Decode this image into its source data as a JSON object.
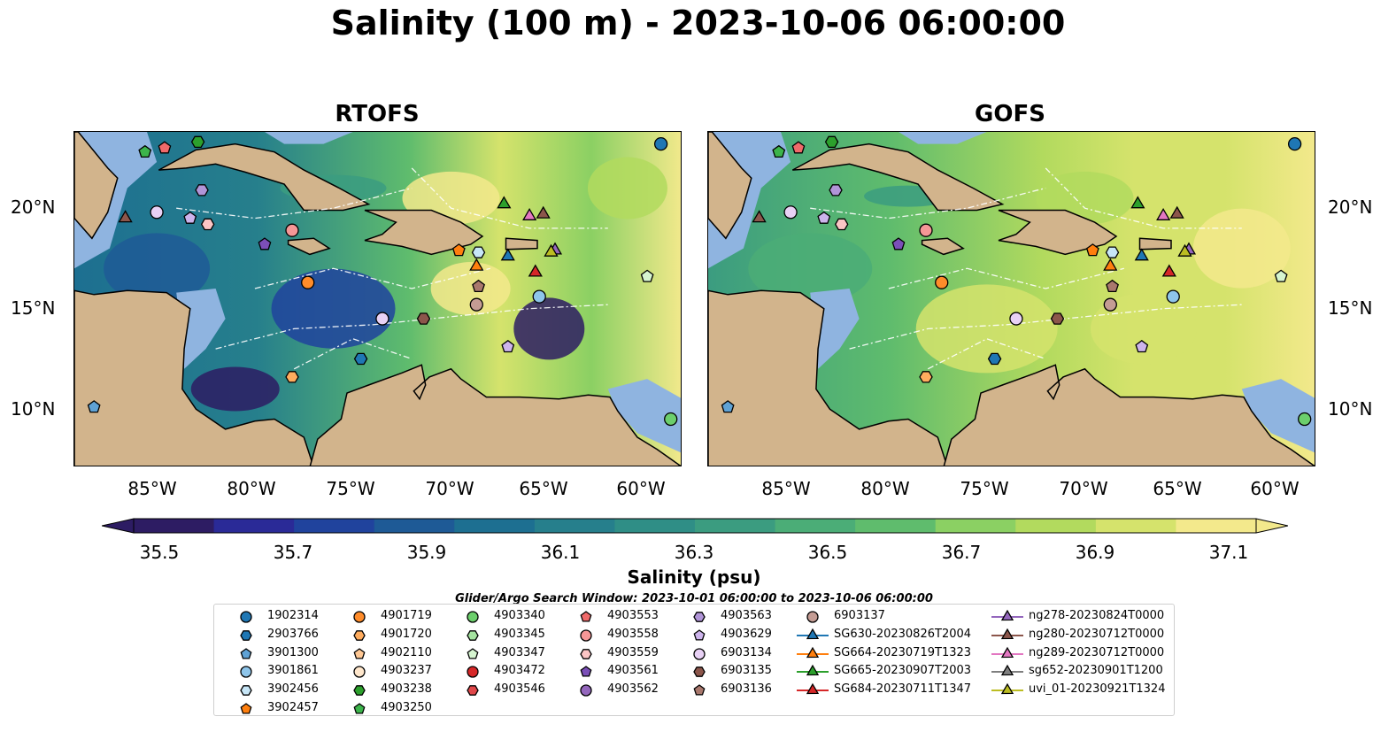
{
  "title": "Salinity (100 m) - 2023-10-06 06:00:00",
  "panels": [
    {
      "title": "RTOFS"
    },
    {
      "title": "GOFS"
    }
  ],
  "lat_ticks": [
    "20°N",
    "15°N",
    "10°N"
  ],
  "lon_ticks": [
    "85°W",
    "80°W",
    "75°W",
    "70°W",
    "65°W",
    "60°W"
  ],
  "colorbar": {
    "label": "Salinity (psu)",
    "ticks": [
      "35.5",
      "35.7",
      "35.9",
      "36.1",
      "36.3",
      "36.5",
      "36.7",
      "36.9",
      "37.1"
    ],
    "colors": [
      "#2d1c63",
      "#2a2a97",
      "#20439d",
      "#1e5a96",
      "#1d6f91",
      "#267f8c",
      "#2f8e86",
      "#3b9c80",
      "#4bad77",
      "#5fbc6d",
      "#8bd063",
      "#b2da5e",
      "#d5e36c",
      "#f3e98c"
    ]
  },
  "legend": {
    "search_window": "Glider/Argo Search Window: 2023-10-01 06:00:00 to 2023-10-06 06:00:00",
    "items": [
      {
        "label": "1902314",
        "marker": "circle",
        "color": "#1f77b4"
      },
      {
        "label": "2903766",
        "marker": "hexagon",
        "color": "#1f77b4"
      },
      {
        "label": "3901300",
        "marker": "pentagon",
        "color": "#5fa2d5"
      },
      {
        "label": "3901861",
        "marker": "circle",
        "color": "#8ec5ea"
      },
      {
        "label": "3902456",
        "marker": "hexagon",
        "color": "#c7e6f7"
      },
      {
        "label": "3902457",
        "marker": "pentagon",
        "color": "#ff7f0e"
      },
      {
        "label": "4901719",
        "marker": "circle",
        "color": "#ff8c2a"
      },
      {
        "label": "4901720",
        "marker": "hexagon",
        "color": "#ffac5e"
      },
      {
        "label": "4902110",
        "marker": "pentagon",
        "color": "#ffc894"
      },
      {
        "label": "4903237",
        "marker": "circle",
        "color": "#ffe7cc"
      },
      {
        "label": "4903238",
        "marker": "hexagon",
        "color": "#2ca02c"
      },
      {
        "label": "4903250",
        "marker": "pentagon",
        "color": "#3cb44b"
      },
      {
        "label": "4903340",
        "marker": "circle",
        "color": "#6ccf6c"
      },
      {
        "label": "4903345",
        "marker": "hexagon",
        "color": "#a5e3a0"
      },
      {
        "label": "4903347",
        "marker": "pentagon",
        "color": "#d6f5d0"
      },
      {
        "label": "4903472",
        "marker": "circle",
        "color": "#d62728"
      },
      {
        "label": "4903546",
        "marker": "hexagon",
        "color": "#e0474a"
      },
      {
        "label": "4903553",
        "marker": "pentagon",
        "color": "#f06a6a"
      },
      {
        "label": "4903558",
        "marker": "circle",
        "color": "#f59797"
      },
      {
        "label": "4903559",
        "marker": "hexagon",
        "color": "#fbc5c5"
      },
      {
        "label": "4903561",
        "marker": "pentagon",
        "color": "#7b4fb8"
      },
      {
        "label": "4903562",
        "marker": "circle",
        "color": "#9467bd"
      },
      {
        "label": "4903563",
        "marker": "hexagon",
        "color": "#b195d8"
      },
      {
        "label": "4903629",
        "marker": "pentagon",
        "color": "#cdb4ec"
      },
      {
        "label": "6903134",
        "marker": "circle",
        "color": "#e8d1f5"
      },
      {
        "label": "6903135",
        "marker": "hexagon",
        "color": "#8c564b"
      },
      {
        "label": "6903136",
        "marker": "pentagon",
        "color": "#a9786d"
      },
      {
        "label": "6903137",
        "marker": "circle",
        "color": "#c49c94"
      },
      {
        "label": "SG630-20230826T2004",
        "marker": "triangle",
        "color": "#1f77b4"
      },
      {
        "label": "SG664-20230719T1323",
        "marker": "triangle",
        "color": "#ff7f0e"
      },
      {
        "label": "SG665-20230907T2003",
        "marker": "triangle",
        "color": "#2ca02c"
      },
      {
        "label": "SG684-20230711T1347",
        "marker": "triangle",
        "color": "#d62728"
      },
      {
        "label": "ng278-20230824T0000",
        "marker": "triangle",
        "color": "#9467bd"
      },
      {
        "label": "ng280-20230712T0000",
        "marker": "triangle",
        "color": "#8c564b"
      },
      {
        "label": "ng289-20230712T0000",
        "marker": "triangle",
        "color": "#e377c2"
      },
      {
        "label": "sg652-20230901T1200",
        "marker": "triangle",
        "color": "#7f7f7f"
      },
      {
        "label": "uvi_01-20230921T1324",
        "marker": "triangle",
        "color": "#bcbd22"
      }
    ]
  },
  "map_colors": {
    "land": "#d2b48c",
    "shallow_water": "#8fb4e0",
    "deep_fill": "#2d1c63"
  },
  "observations": [
    {
      "id": "1902314",
      "marker": "circle",
      "color": "#1f77b4",
      "lon": -59.3,
      "lat": 23.2
    },
    {
      "id": "3901300",
      "marker": "pentagon",
      "color": "#5fa2d5",
      "lon": -88.2,
      "lat": 10.1
    },
    {
      "id": "4903250",
      "marker": "pentagon",
      "color": "#3cb44b",
      "lon": -85.6,
      "lat": 22.8
    },
    {
      "id": "4903553",
      "marker": "pentagon",
      "color": "#f06a6a",
      "lon": -84.6,
      "lat": 23.0
    },
    {
      "id": "4903238",
      "marker": "hexagon",
      "color": "#2ca02c",
      "lon": -82.9,
      "lat": 23.3
    },
    {
      "id": "4903563",
      "marker": "hexagon",
      "color": "#b195d8",
      "lon": -82.7,
      "lat": 20.9
    },
    {
      "id": "ng280-20230712T0000",
      "marker": "triangle",
      "color": "#8c564b",
      "lon": -86.6,
      "lat": 19.5
    },
    {
      "id": "4903629",
      "marker": "pentagon",
      "color": "#cdb4ec",
      "lon": -83.3,
      "lat": 19.5
    },
    {
      "id": "6903134",
      "marker": "circle",
      "color": "#e8d1f5",
      "lon": -85.0,
      "lat": 19.8
    },
    {
      "id": "4903561",
      "marker": "pentagon",
      "color": "#7b4fb8",
      "lon": -79.5,
      "lat": 18.2
    },
    {
      "id": "4903558",
      "marker": "circle",
      "color": "#f59797",
      "lon": -78.1,
      "lat": 18.9
    },
    {
      "id": "4901719",
      "marker": "circle",
      "color": "#ff8c2a",
      "lon": -77.3,
      "lat": 16.3
    },
    {
      "id": "4903559",
      "marker": "hexagon",
      "color": "#fbc5c5",
      "lon": -82.4,
      "lat": 19.2
    },
    {
      "id": "6903134b",
      "marker": "circle",
      "color": "#e8d1f5",
      "lon": -73.5,
      "lat": 14.5
    },
    {
      "id": "6903135",
      "marker": "hexagon",
      "color": "#8c564b",
      "lon": -71.4,
      "lat": 14.5
    },
    {
      "id": "2903766",
      "marker": "hexagon",
      "color": "#1f77b4",
      "lon": -74.6,
      "lat": 12.5
    },
    {
      "id": "4901720",
      "marker": "hexagon",
      "color": "#ffac5e",
      "lon": -78.1,
      "lat": 11.6
    },
    {
      "id": "3902457",
      "marker": "pentagon",
      "color": "#ff7f0e",
      "lon": -69.6,
      "lat": 17.9
    },
    {
      "id": "SG664-20230719T1323",
      "marker": "triangle",
      "color": "#ff7f0e",
      "lon": -68.7,
      "lat": 17.1
    },
    {
      "id": "3902456",
      "marker": "hexagon",
      "color": "#c7e6f7",
      "lon": -68.6,
      "lat": 17.8
    },
    {
      "id": "6903136",
      "marker": "pentagon",
      "color": "#a9786d",
      "lon": -68.6,
      "lat": 16.1
    },
    {
      "id": "6903137",
      "marker": "circle",
      "color": "#c49c94",
      "lon": -68.7,
      "lat": 15.2
    },
    {
      "id": "SG665-20230907T2003",
      "marker": "triangle",
      "color": "#2ca02c",
      "lon": -67.3,
      "lat": 20.2
    },
    {
      "id": "ng289-20230712T0000",
      "marker": "triangle",
      "color": "#e377c2",
      "lon": -66.0,
      "lat": 19.6
    },
    {
      "id": "ng280b",
      "marker": "triangle",
      "color": "#8c564b",
      "lon": -65.3,
      "lat": 19.7
    },
    {
      "id": "SG630-20230826T2004",
      "marker": "triangle",
      "color": "#1f77b4",
      "lon": -67.1,
      "lat": 17.6
    },
    {
      "id": "SG684-20230711T1347",
      "marker": "triangle",
      "color": "#d62728",
      "lon": -65.7,
      "lat": 16.8
    },
    {
      "id": "ng278-20230824T0000",
      "marker": "triangle",
      "color": "#9467bd",
      "lon": -64.7,
      "lat": 17.9
    },
    {
      "id": "uvi_01-20230921T1324",
      "marker": "triangle",
      "color": "#bcbd22",
      "lon": -64.9,
      "lat": 17.8
    },
    {
      "id": "3901861",
      "marker": "circle",
      "color": "#8ec5ea",
      "lon": -65.5,
      "lat": 15.6
    },
    {
      "id": "4903629b",
      "marker": "pentagon",
      "color": "#cdb4ec",
      "lon": -67.1,
      "lat": 13.1
    },
    {
      "id": "4903347",
      "marker": "pentagon",
      "color": "#d6f5d0",
      "lon": -60.0,
      "lat": 16.6
    },
    {
      "id": "4903340",
      "marker": "circle",
      "color": "#6ccf6c",
      "lon": -58.8,
      "lat": 9.5
    }
  ]
}
